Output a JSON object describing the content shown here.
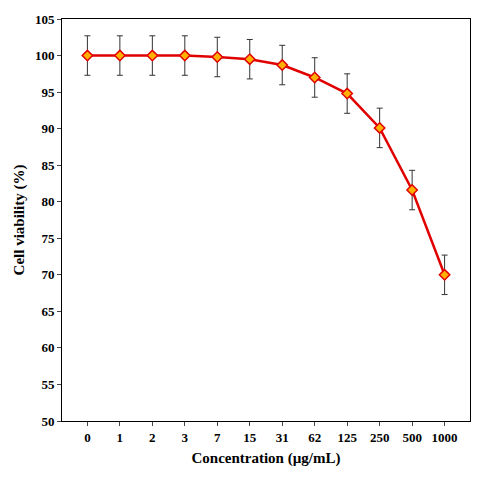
{
  "chart_data": {
    "type": "line",
    "x_label": "Concentration (µg/mL)",
    "y_label": "Cell viability (%)",
    "categories": [
      "0",
      "1",
      "2",
      "3",
      "7",
      "15",
      "31",
      "62",
      "125",
      "250",
      "500",
      "1000"
    ],
    "values": [
      100,
      100,
      100,
      100,
      99.8,
      99.5,
      98.7,
      97,
      94.8,
      90.1,
      81.6,
      70
    ],
    "errors": [
      2.7,
      2.7,
      2.7,
      2.7,
      2.7,
      2.7,
      2.7,
      2.7,
      2.7,
      2.7,
      2.7,
      2.7
    ],
    "color": "#e00000",
    "marker": "diamond",
    "line_style": "solid",
    "ylim": [
      50,
      105
    ],
    "yticks": [
      50,
      55,
      60,
      65,
      70,
      75,
      80,
      85,
      90,
      95,
      100,
      105
    ],
    "grid": false
  }
}
